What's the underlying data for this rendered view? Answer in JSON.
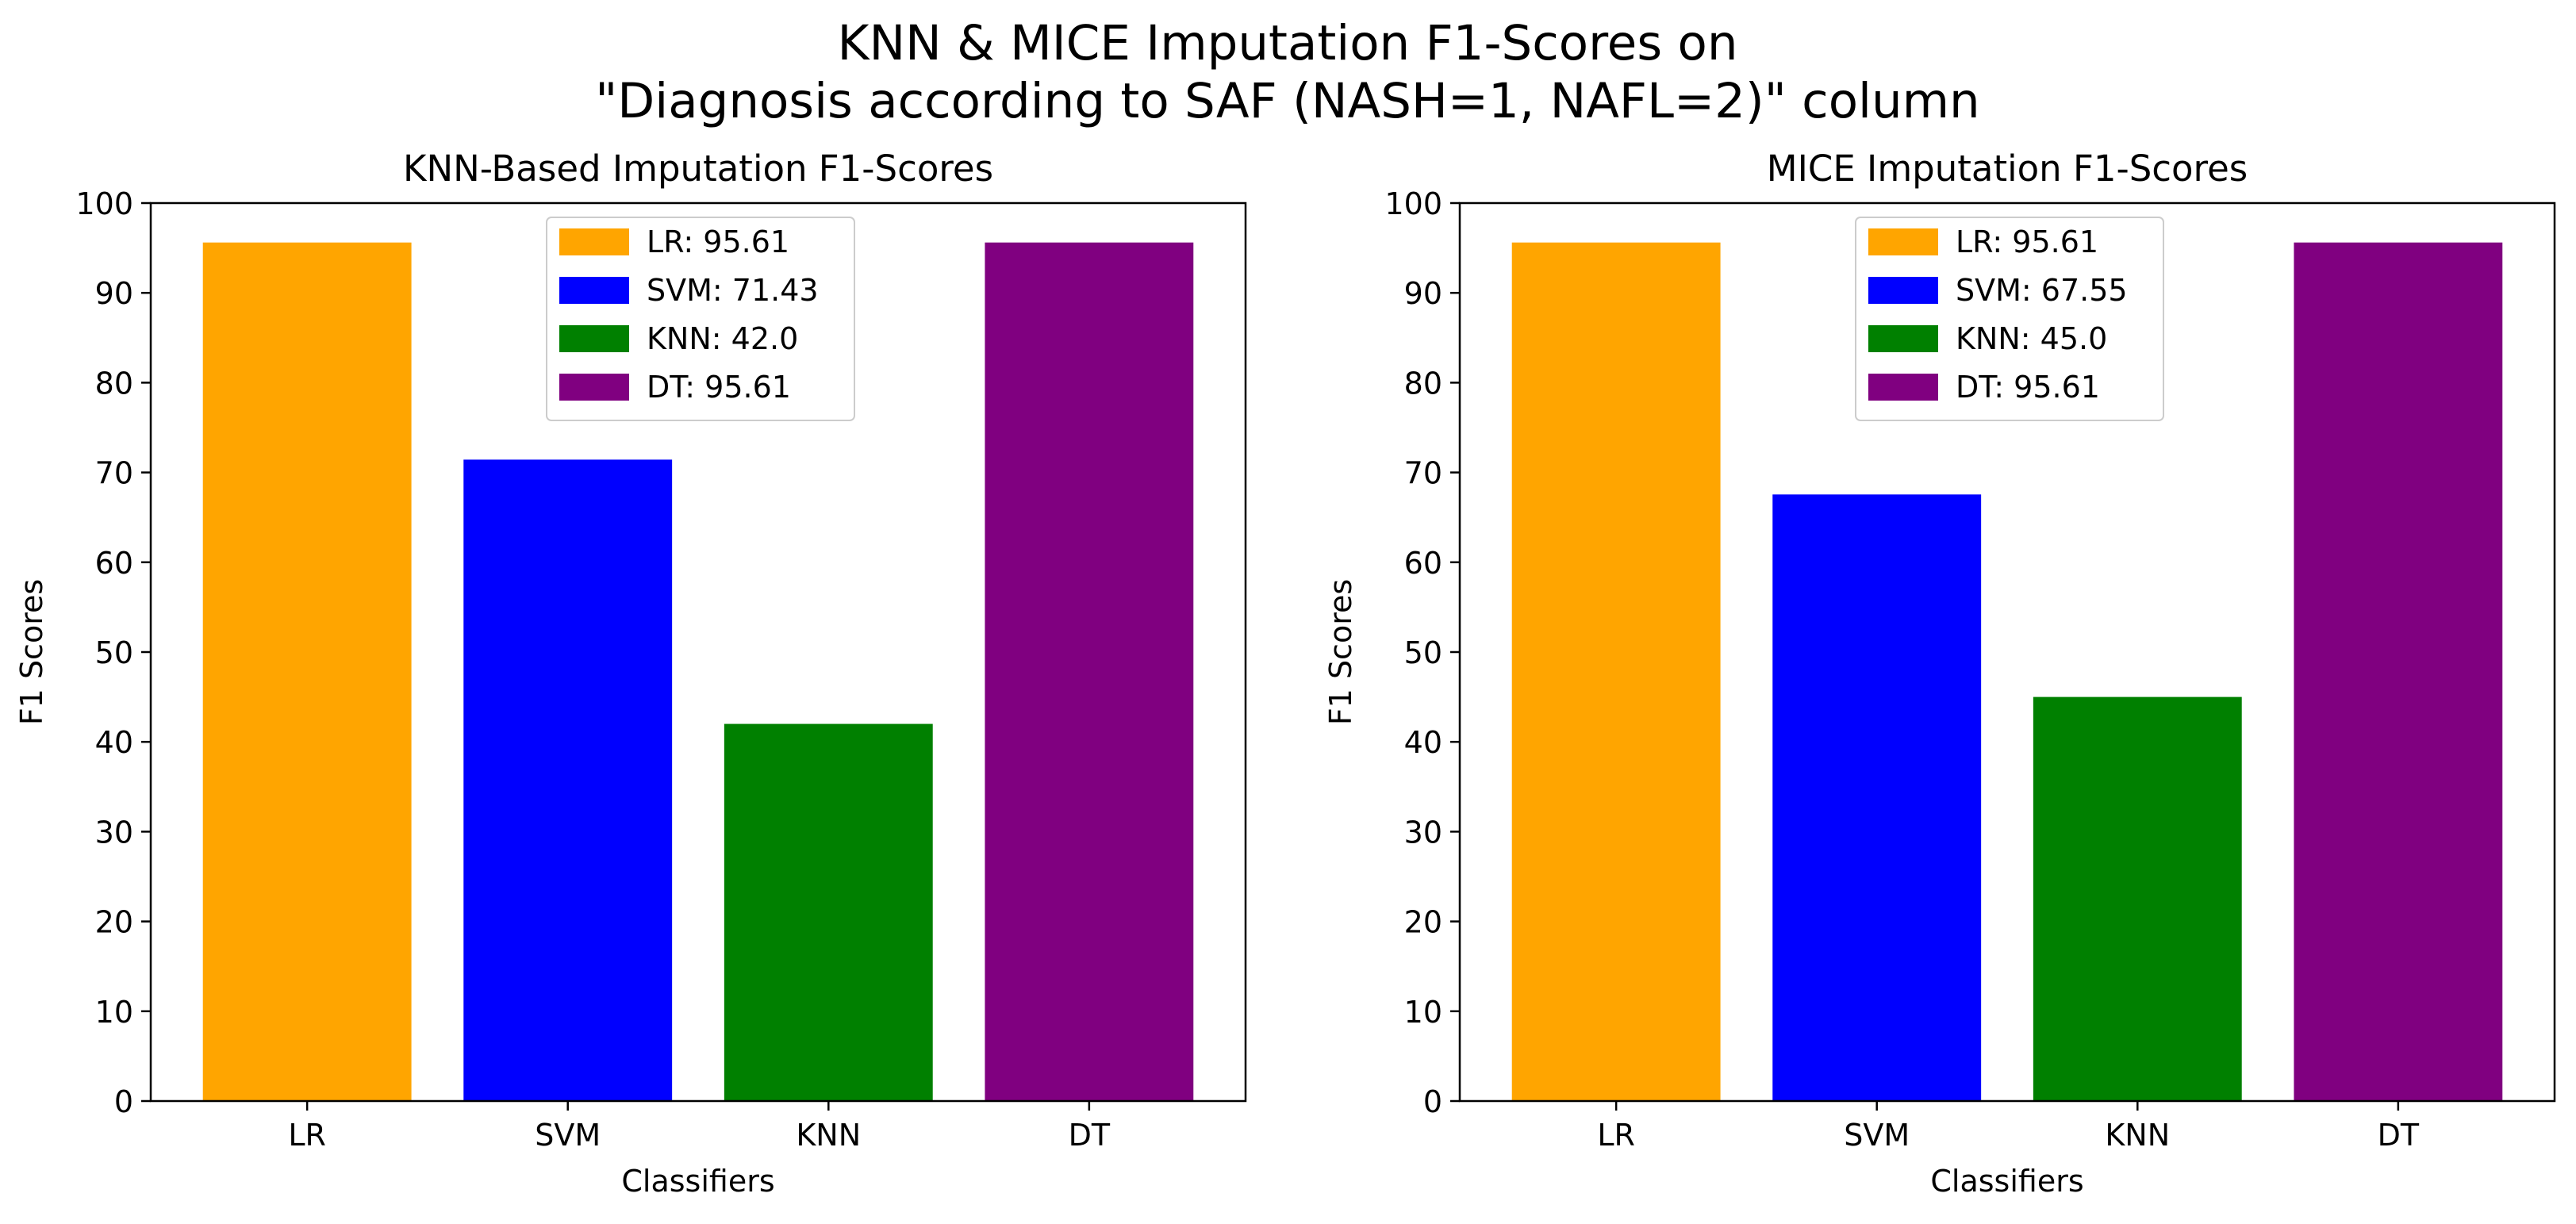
{
  "suptitle": {
    "line1": "KNN & MICE Imputation F1-Scores on",
    "line2": "\"Diagnosis according to SAF (NASH=1, NAFL=2)\" column"
  },
  "chart_data": [
    {
      "type": "bar",
      "title": "KNN-Based Imputation F1-Scores",
      "xlabel": "Classifiers",
      "ylabel": "F1 Scores",
      "categories": [
        "LR",
        "SVM",
        "KNN",
        "DT"
      ],
      "values": [
        95.61,
        71.43,
        42.0,
        95.61
      ],
      "colors": [
        "#ffa500",
        "#0000ff",
        "#008000",
        "#800080"
      ],
      "legend": [
        "LR: 95.61",
        "SVM: 71.43",
        "KNN: 42.0",
        "DT: 95.61"
      ],
      "legend_position": "upper center",
      "ylim": [
        0,
        100
      ],
      "yticks": [
        0,
        10,
        20,
        30,
        40,
        50,
        60,
        70,
        80,
        90,
        100
      ],
      "grid": false
    },
    {
      "type": "bar",
      "title": "MICE Imputation F1-Scores",
      "xlabel": "Classifiers",
      "ylabel": "F1 Scores",
      "categories": [
        "LR",
        "SVM",
        "KNN",
        "DT"
      ],
      "values": [
        95.61,
        67.55,
        45.0,
        95.61
      ],
      "colors": [
        "#ffa500",
        "#0000ff",
        "#008000",
        "#800080"
      ],
      "legend": [
        "LR: 95.61",
        "SVM: 67.55",
        "KNN: 45.0",
        "DT: 95.61"
      ],
      "legend_position": "upper center",
      "ylim": [
        0,
        100
      ],
      "yticks": [
        0,
        10,
        20,
        30,
        40,
        50,
        60,
        70,
        80,
        90,
        100
      ],
      "grid": false
    }
  ]
}
